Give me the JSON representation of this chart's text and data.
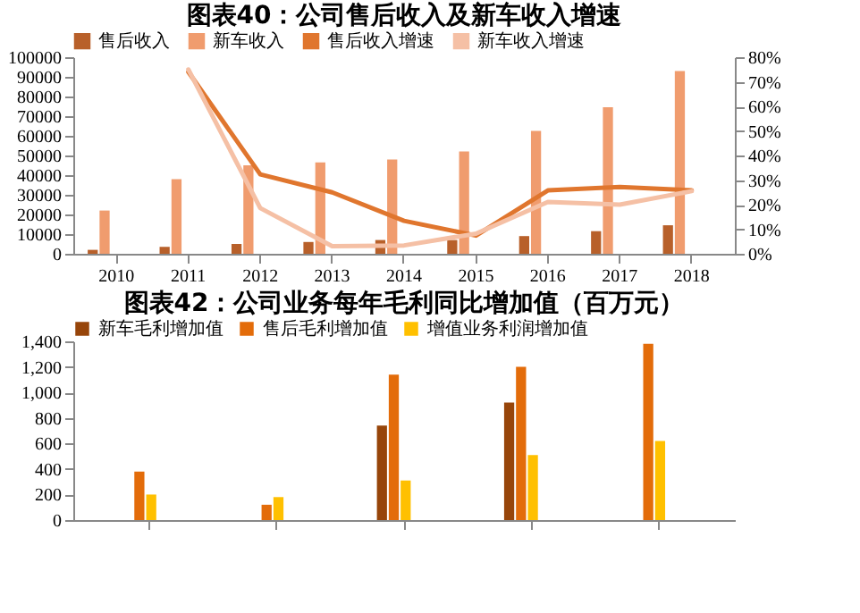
{
  "chart_data": [
    {
      "type": "bar",
      "title": "图表40：公司售后收入及新车收入增速",
      "categories": [
        "2010",
        "2011",
        "2012",
        "2013",
        "2014",
        "2015",
        "2016",
        "2017",
        "2018"
      ],
      "series": [
        {
          "name": "售后收入",
          "color": "#b8602a",
          "values": [
            2000,
            3500,
            5000,
            6000,
            7000,
            7000,
            9000,
            11500,
            14500
          ]
        },
        {
          "name": "新车收入",
          "color": "#f09c6e",
          "values": [
            22000,
            38000,
            45000,
            46500,
            48000,
            52000,
            62500,
            74500,
            93000
          ]
        },
        {
          "name": "售后收入增速",
          "type": "line",
          "axis": "y2",
          "color": "#e0762e",
          "values": [
            null,
            74,
            32.3,
            25,
            13.4,
            7.4,
            25.8,
            27.2,
            25.8
          ]
        },
        {
          "name": "新车收入增速",
          "type": "line",
          "axis": "y2",
          "color": "#f5c0a5",
          "values": [
            null,
            75,
            18.6,
            3.1,
            3.4,
            8.2,
            21.1,
            20,
            25.5
          ]
        }
      ],
      "ylim": [
        0,
        100000
      ],
      "yticks": [
        0,
        10000,
        20000,
        30000,
        40000,
        50000,
        60000,
        70000,
        80000,
        90000,
        100000
      ],
      "y2lim": [
        0,
        80
      ],
      "y2ticks": [
        {
          "value": 0,
          "label": "0%"
        },
        {
          "value": 10,
          "label": "10%"
        },
        {
          "value": 20,
          "label": "20%"
        },
        {
          "value": 30,
          "label": "30%"
        },
        {
          "value": 40,
          "label": "40%"
        },
        {
          "value": 50,
          "label": "50%"
        },
        {
          "value": 60,
          "label": "60%"
        },
        {
          "value": 70,
          "label": "70%"
        },
        {
          "value": 80,
          "label": "80%"
        }
      ],
      "legend": "top"
    },
    {
      "type": "bar",
      "title": "图表42：公司业务每年毛利同比增加值（百万元）",
      "categories": [
        null,
        null,
        null,
        null,
        null
      ],
      "series": [
        {
          "name": "新车毛利增加值",
          "color": "#97450a",
          "values": [
            0,
            0,
            740,
            920,
            0
          ]
        },
        {
          "name": "售后毛利增加值",
          "color": "#e36c0a",
          "values": [
            380,
            120,
            1140,
            1200,
            1380
          ]
        },
        {
          "name": "增值业务利润增加值",
          "color": "#ffc000",
          "values": [
            200,
            180,
            310,
            510,
            620
          ]
        }
      ],
      "ylim": [
        0,
        1400
      ],
      "yticks": [
        0,
        {
          "value": 200,
          "label": "200"
        },
        {
          "value": 400,
          "label": "400"
        },
        {
          "value": 600,
          "label": "600"
        },
        {
          "value": 800,
          "label": "800"
        },
        {
          "value": 1000,
          "label": "1,000"
        },
        {
          "value": 1200,
          "label": "1,200"
        },
        {
          "value": 1400,
          "label": "1,400"
        }
      ],
      "tick_labels": "y",
      "legend": "top"
    }
  ]
}
